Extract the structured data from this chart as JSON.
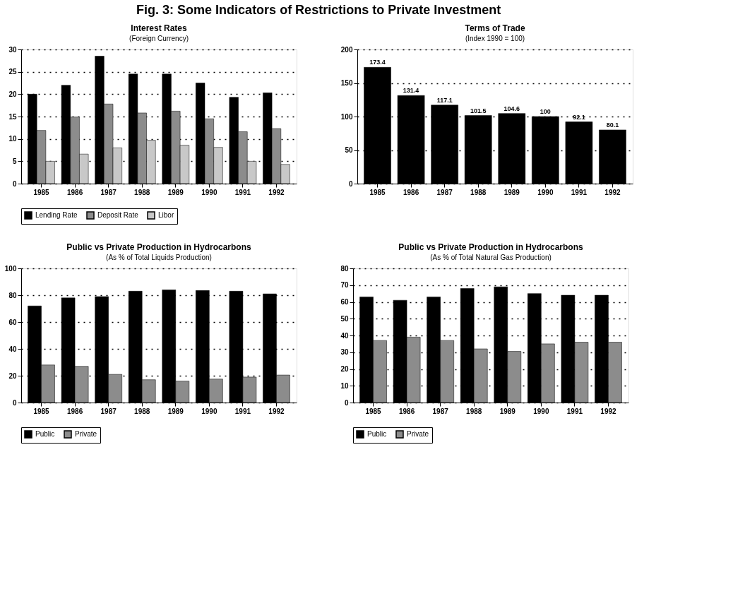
{
  "chart_data": [
    {
      "type": "bar",
      "title": "Interest Rates",
      "subtitle": "(Foreign Currency)",
      "annotations": [
        "Fig. 3:  Some Indicators of Restrictions to Private Investment"
      ],
      "categories": [
        "1985",
        "1986",
        "1987",
        "1988",
        "1989",
        "1990",
        "1991",
        "1992"
      ],
      "series": [
        {
          "name": "Lending Rate",
          "color": "#000000",
          "values": [
            20,
            22,
            28.5,
            24.5,
            24.5,
            22.5,
            19.3,
            20.3
          ]
        },
        {
          "name": "Deposit Rate",
          "color": "#8c8c8c",
          "values": [
            11.9,
            14.9,
            17.8,
            15.8,
            16.2,
            14.5,
            11.6,
            12.3
          ]
        },
        {
          "name": "Libor",
          "color": "#c8c8c8",
          "values": [
            5,
            6.6,
            8,
            9.7,
            8.6,
            8.1,
            5,
            4.3
          ]
        }
      ],
      "ylim": [
        0,
        30
      ],
      "yticks": [
        0,
        5,
        10,
        15,
        20,
        25,
        30
      ],
      "grid": "y",
      "legend": "bottom"
    },
    {
      "type": "bar",
      "title": "Terms of Trade",
      "subtitle": "(Index 1990 = 100)",
      "categories": [
        "1985",
        "1986",
        "1987",
        "1988",
        "1989",
        "1990",
        "1991",
        "1992"
      ],
      "series": [
        {
          "color": "#000000",
          "values": [
            173.4,
            131.4,
            117.1,
            101.5,
            104.6,
            100,
            92.1,
            80.1
          ]
        }
      ],
      "ylim": [
        0,
        200
      ],
      "yticks": [
        0,
        50,
        100,
        150,
        200
      ],
      "grid": "y",
      "data_labels": true
    },
    {
      "type": "bar",
      "title": "Public vs Private Production in Hydrocarbons",
      "subtitle": "(As % of Total Liquids Production)",
      "categories": [
        "1985",
        "1986",
        "1987",
        "1988",
        "1989",
        "1990",
        "1991",
        "1992"
      ],
      "series": [
        {
          "name": "Public",
          "color": "#000000",
          "values": [
            72,
            78,
            79,
            83,
            84,
            83.5,
            83,
            81
          ]
        },
        {
          "name": "Private",
          "color": "#8c8c8c",
          "values": [
            28,
            27,
            21,
            17,
            16,
            17.5,
            19,
            20.5
          ]
        }
      ],
      "ylim": [
        0,
        100
      ],
      "yticks": [
        0,
        20,
        40,
        60,
        80,
        100
      ],
      "grid": "y",
      "legend": "bottom"
    },
    {
      "type": "bar",
      "title": "Public vs Private Production in Hydrocarbons",
      "subtitle": "(As % of Total Natural Gas Production)",
      "categories": [
        "1985",
        "1986",
        "1987",
        "1988",
        "1989",
        "1990",
        "1991",
        "1992"
      ],
      "series": [
        {
          "name": "Public",
          "color": "#000000",
          "values": [
            63,
            61,
            63,
            68,
            69,
            65,
            64,
            64
          ]
        },
        {
          "name": "Private",
          "color": "#8c8c8c",
          "values": [
            37,
            39,
            37,
            32,
            30.5,
            35,
            36,
            36
          ]
        }
      ],
      "ylim": [
        0,
        80
      ],
      "yticks": [
        0,
        10,
        20,
        30,
        40,
        50,
        60,
        70,
        80
      ],
      "grid": "y",
      "legend": "bottom"
    }
  ]
}
